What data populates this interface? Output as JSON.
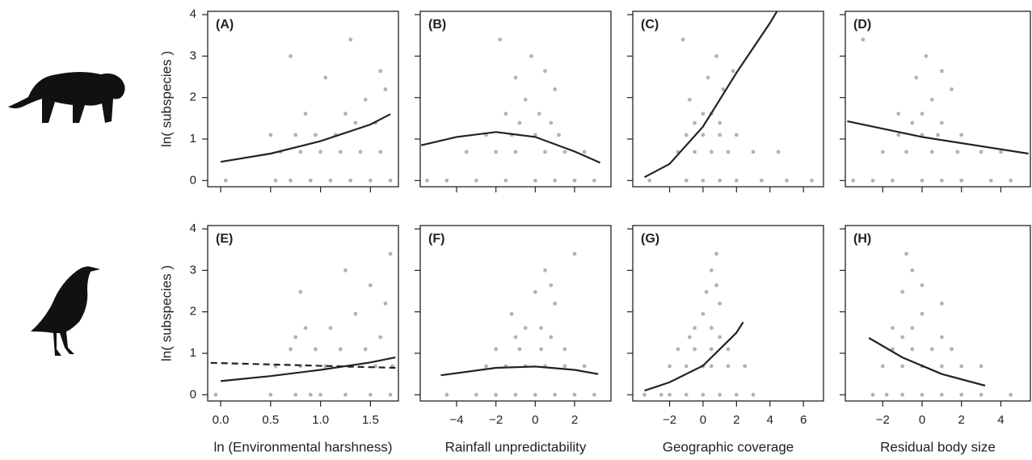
{
  "chart_data": [
    {
      "type": "scatter",
      "title": "(A)",
      "ylabel": "ln( subspecies )",
      "xlim": [
        -0.13,
        1.78
      ],
      "ylim": [
        -0.15,
        4.08
      ],
      "xticks": [
        0,
        0.5,
        1,
        1.5
      ],
      "yticks": [
        0,
        1,
        2,
        3,
        4
      ],
      "series": [
        {
          "color": "#9a9a9a",
          "x": [
            0.05,
            0.55,
            0.7,
            0.9,
            1.1,
            1.3,
            1.5,
            1.7,
            0.6,
            0.8,
            1.0,
            1.2,
            1.4,
            1.6,
            0.5,
            0.75,
            0.95,
            1.15,
            1.35,
            1.55,
            0.85,
            1.25,
            1.45,
            1.65,
            1.05,
            1.6,
            0.7,
            1.3
          ],
          "y": [
            0,
            0,
            0,
            0,
            0,
            0,
            0,
            0,
            0.69,
            0.69,
            0.69,
            0.69,
            0.69,
            0.69,
            1.1,
            1.1,
            1.1,
            1.1,
            1.39,
            1.39,
            1.61,
            1.61,
            1.95,
            2.2,
            2.48,
            2.64,
            3.0,
            3.4
          ]
        },
        {
          "type": "line",
          "color": "#222222",
          "x": [
            0,
            0.5,
            1,
            1.5,
            1.7
          ],
          "y": [
            0.45,
            0.65,
            0.95,
            1.35,
            1.6
          ]
        }
      ]
    },
    {
      "type": "scatter",
      "title": "(B)",
      "xlim": [
        -5.85,
        3.85
      ],
      "ylim": [
        -0.15,
        4.08
      ],
      "xticks": [
        -4,
        -2,
        0,
        2
      ],
      "yticks": [
        0,
        1,
        2,
        3,
        4
      ],
      "series": [
        {
          "color": "#9a9a9a",
          "x": [
            -5.5,
            -3,
            -1.5,
            0,
            1,
            2,
            3,
            -4.5,
            -3.5,
            -2,
            -1,
            0.5,
            1.5,
            2.5,
            -2.5,
            -1.2,
            0,
            1.2,
            -0.8,
            0.8,
            -1.5,
            0.2,
            -0.5,
            1,
            -1,
            0.5,
            -0.2,
            -1.8
          ],
          "y": [
            0,
            0,
            0,
            0,
            0,
            0,
            0,
            0,
            0.69,
            0.69,
            0.69,
            0.69,
            0.69,
            0.69,
            1.1,
            1.1,
            1.1,
            1.1,
            1.39,
            1.39,
            1.61,
            1.61,
            1.95,
            2.2,
            2.48,
            2.64,
            3.0,
            3.4
          ]
        },
        {
          "type": "line",
          "color": "#222222",
          "x": [
            -5.8,
            -4,
            -2,
            0,
            2,
            3.3
          ],
          "y": [
            0.85,
            1.05,
            1.17,
            1.05,
            0.7,
            0.43
          ]
        }
      ]
    },
    {
      "type": "scatter",
      "title": "(C)",
      "xlim": [
        -4.2,
        7.2
      ],
      "ylim": [
        -0.15,
        4.08
      ],
      "xticks": [
        -2,
        0,
        2,
        4,
        6
      ],
      "yticks": [
        0,
        1,
        2,
        3,
        4
      ],
      "series": [
        {
          "color": "#9a9a9a",
          "x": [
            -3.2,
            -1,
            0,
            1,
            2,
            3.5,
            5,
            6.5,
            -1.5,
            -0.5,
            0.5,
            1.5,
            3,
            4.5,
            -1,
            0,
            1,
            2,
            -0.5,
            1,
            0,
            0.5,
            -0.8,
            1.2,
            0.3,
            1.8,
            0.8,
            -1.2
          ],
          "y": [
            0,
            0,
            0,
            0,
            0,
            0,
            0,
            0,
            0.69,
            0.69,
            0.69,
            0.69,
            0.69,
            0.69,
            1.1,
            1.1,
            1.1,
            1.1,
            1.39,
            1.39,
            1.61,
            1.61,
            1.95,
            2.2,
            2.48,
            2.64,
            3.0,
            3.4
          ]
        },
        {
          "type": "line",
          "color": "#222222",
          "x": [
            -3.5,
            -2,
            0,
            2,
            4,
            4.6
          ],
          "y": [
            0.08,
            0.4,
            1.3,
            2.6,
            3.8,
            4.2
          ]
        }
      ]
    },
    {
      "type": "scatter",
      "title": "(D)",
      "xlim": [
        -3.9,
        5.5
      ],
      "ylim": [
        -0.15,
        4.08
      ],
      "xticks": [
        -2,
        0,
        2,
        4
      ],
      "yticks": [
        0,
        1,
        2,
        3,
        4
      ],
      "series": [
        {
          "color": "#9a9a9a",
          "x": [
            -3.5,
            -1.5,
            0,
            1,
            2,
            3.5,
            4.5,
            -2.5,
            -2,
            -0.8,
            0.5,
            1.8,
            3,
            4,
            -1.2,
            0,
            0.8,
            2,
            -0.5,
            1,
            -1.2,
            0,
            0.5,
            1.5,
            -0.3,
            1,
            0.2,
            -3
          ],
          "y": [
            0,
            0,
            0,
            0,
            0,
            0,
            0,
            0,
            0.69,
            0.69,
            0.69,
            0.69,
            0.69,
            0.69,
            1.1,
            1.1,
            1.1,
            1.1,
            1.39,
            1.39,
            1.61,
            1.61,
            1.95,
            2.2,
            2.48,
            2.64,
            3.0,
            3.4
          ]
        },
        {
          "type": "line",
          "color": "#222222",
          "x": [
            -3.8,
            0,
            5.4
          ],
          "y": [
            1.43,
            1.05,
            0.65
          ]
        }
      ]
    },
    {
      "type": "scatter",
      "title": "(E)",
      "ylabel": "ln( subspecies )",
      "xlabel": "ln (Environmental harshness)",
      "xlim": [
        -0.13,
        1.78
      ],
      "ylim": [
        -0.15,
        4.08
      ],
      "xticks": [
        {
          "value": 0,
          "label": "0.0"
        },
        {
          "value": 0.5,
          "label": "0.5"
        },
        {
          "value": 1,
          "label": "1.0"
        },
        {
          "value": 1.5,
          "label": "1.5"
        }
      ],
      "yticks": [
        0,
        1,
        2,
        3,
        4
      ],
      "series": [
        {
          "color": "#9a9a9a",
          "x": [
            -0.05,
            0.5,
            0.75,
            1.0,
            1.25,
            1.5,
            1.7,
            0.9,
            0.55,
            0.8,
            1.05,
            1.3,
            1.55,
            1.72,
            0.7,
            0.95,
            1.2,
            1.45,
            0.75,
            1.6,
            0.85,
            1.1,
            1.35,
            1.65,
            0.8,
            1.5,
            1.25,
            1.7
          ],
          "y": [
            0,
            0,
            0,
            0,
            0,
            0,
            0,
            0,
            0.69,
            0.69,
            0.69,
            0.69,
            0.69,
            0.69,
            1.1,
            1.1,
            1.1,
            1.1,
            1.39,
            1.39,
            1.61,
            1.61,
            1.95,
            2.2,
            2.48,
            2.64,
            3.0,
            3.4
          ]
        },
        {
          "type": "line",
          "color": "#222222",
          "x": [
            0,
            0.5,
            1,
            1.5,
            1.75
          ],
          "y": [
            0.33,
            0.45,
            0.6,
            0.78,
            0.9
          ]
        },
        {
          "type": "line",
          "style": "dashed",
          "color": "#222222",
          "x": [
            -0.1,
            1.75
          ],
          "y": [
            0.77,
            0.65
          ]
        }
      ]
    },
    {
      "type": "scatter",
      "title": "(F)",
      "xlabel": "Rainfall unpredictability",
      "xlim": [
        -5.85,
        3.85
      ],
      "ylim": [
        -0.15,
        4.08
      ],
      "xticks": [
        {
          "value": -4,
          "label": "−4"
        },
        {
          "value": -2,
          "label": "−2"
        },
        0,
        2
      ],
      "yticks": [
        0,
        1,
        2,
        3,
        4
      ],
      "series": [
        {
          "color": "#9a9a9a",
          "x": [
            -4.5,
            -2,
            -1,
            0,
            1,
            2,
            3,
            -3,
            -2.5,
            -1.5,
            -0.5,
            0.5,
            1.5,
            2.5,
            -2,
            -0.8,
            0.3,
            1.5,
            -1,
            0.8,
            -0.5,
            0.3,
            -1.2,
            1,
            0,
            0.8,
            0.5,
            2
          ],
          "y": [
            0,
            0,
            0,
            0,
            0,
            0,
            0,
            0,
            0.69,
            0.69,
            0.69,
            0.69,
            0.69,
            0.69,
            1.1,
            1.1,
            1.1,
            1.1,
            1.39,
            1.39,
            1.61,
            1.61,
            1.95,
            2.2,
            2.48,
            2.64,
            3.0,
            3.4
          ]
        },
        {
          "type": "line",
          "color": "#222222",
          "x": [
            -4.8,
            -2,
            0,
            2,
            3.2
          ],
          "y": [
            0.47,
            0.65,
            0.68,
            0.6,
            0.5
          ]
        }
      ]
    },
    {
      "type": "scatter",
      "title": "(G)",
      "xlabel": "Geographic coverage",
      "xlim": [
        -4.2,
        7.2
      ],
      "ylim": [
        -0.15,
        4.08
      ],
      "xticks": [
        {
          "value": -2,
          "label": "−2"
        },
        0,
        2,
        4,
        6
      ],
      "yticks": [
        0,
        1,
        2,
        3,
        4
      ],
      "series": [
        {
          "color": "#9a9a9a",
          "x": [
            -3.5,
            -2,
            -1,
            0,
            1,
            2,
            3,
            -2.5,
            -2,
            -1,
            0,
            0.5,
            1.5,
            2.5,
            -1.5,
            -0.5,
            0.5,
            1.5,
            -0.8,
            1,
            -0.5,
            0.5,
            0,
            1,
            0.2,
            0.8,
            0.5,
            0.8
          ],
          "y": [
            0,
            0,
            0,
            0,
            0,
            0,
            0,
            0,
            0.69,
            0.69,
            0.69,
            0.69,
            0.69,
            0.69,
            1.1,
            1.1,
            1.1,
            1.1,
            1.39,
            1.39,
            1.61,
            1.61,
            1.95,
            2.2,
            2.48,
            2.64,
            3.0,
            3.4
          ]
        },
        {
          "type": "line",
          "color": "#222222",
          "x": [
            -3.5,
            -2,
            0,
            2,
            2.4
          ],
          "y": [
            0.1,
            0.3,
            0.7,
            1.5,
            1.75
          ]
        }
      ]
    },
    {
      "type": "scatter",
      "title": "(H)",
      "xlabel": "Residual body size",
      "xlim": [
        -3.9,
        5.5
      ],
      "ylim": [
        -0.15,
        4.08
      ],
      "xticks": [
        {
          "value": -2,
          "label": "−2"
        },
        0,
        2,
        4
      ],
      "yticks": [
        0,
        1,
        2,
        3,
        4
      ],
      "series": [
        {
          "color": "#9a9a9a",
          "x": [
            -2.5,
            -1,
            0,
            1,
            2,
            3,
            4.5,
            -1.8,
            -2,
            -1,
            0,
            1,
            2,
            3,
            -1.5,
            -0.5,
            0.5,
            1.5,
            -1,
            1,
            -1.5,
            -0.5,
            0,
            1,
            -1,
            0,
            -0.5,
            -0.8
          ],
          "y": [
            0,
            0,
            0,
            0,
            0,
            0,
            0,
            0,
            0.69,
            0.69,
            0.69,
            0.69,
            0.69,
            0.69,
            1.1,
            1.1,
            1.1,
            1.1,
            1.39,
            1.39,
            1.61,
            1.61,
            1.95,
            2.2,
            2.48,
            2.64,
            3.0,
            3.4
          ]
        },
        {
          "type": "line",
          "color": "#222222",
          "x": [
            -2.7,
            -1,
            1,
            3.2
          ],
          "y": [
            1.37,
            0.9,
            0.5,
            0.22
          ]
        }
      ]
    }
  ]
}
